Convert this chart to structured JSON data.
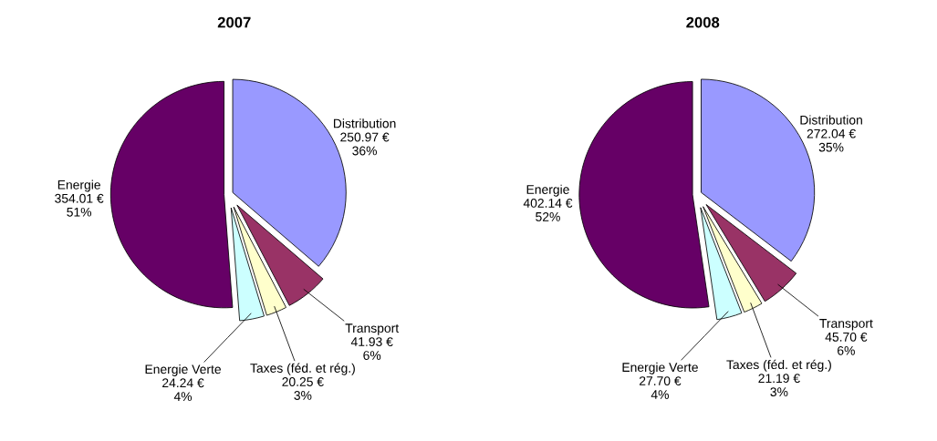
{
  "chart_data": [
    {
      "type": "pie",
      "title": "2007",
      "categories": [
        "Distribution",
        "Transport",
        "Taxes (féd. et rég.)",
        "Energie Verte",
        "Energie"
      ],
      "values": [
        250.97,
        41.93,
        20.25,
        24.24,
        354.01
      ],
      "colors": [
        "#9999ff",
        "#993366",
        "#ffffcc",
        "#ccffff",
        "#660066"
      ],
      "value_labels": [
        "250.97 €\n36%",
        "41.93 €\n6%",
        "20.25 €\n3%",
        "24.24 €\n4%",
        "354.01 €\n51%"
      ]
    },
    {
      "type": "pie",
      "title": "2008",
      "categories": [
        "Distribution",
        "Transport",
        "Taxes (féd. et rég.)",
        "Energie Verte",
        "Energie"
      ],
      "values": [
        272.04,
        45.7,
        21.19,
        27.7,
        402.14
      ],
      "colors": [
        "#9999ff",
        "#993366",
        "#ffffcc",
        "#ccffff",
        "#660066"
      ],
      "value_labels": [
        "272.04 €\n35%",
        "45.70 €\n6%",
        "21.19 €\n3%",
        "27.70 €\n4%",
        "402.14 €\n52%"
      ]
    }
  ]
}
